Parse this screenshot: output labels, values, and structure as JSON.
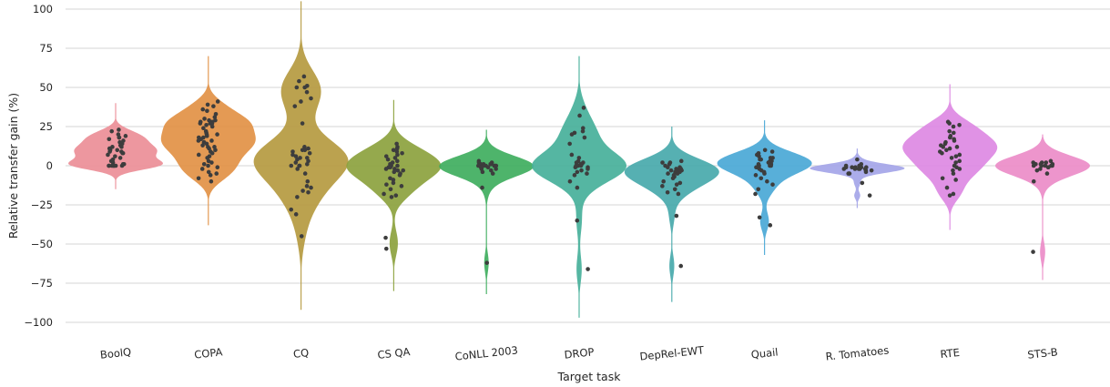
{
  "chart_data": {
    "type": "violin",
    "title": "",
    "xlabel": "Target task",
    "ylabel": "Relative transfer gain (%)",
    "ylim": [
      -100,
      100
    ],
    "yticks": [
      100,
      75,
      50,
      25,
      0,
      -25,
      -50,
      -75,
      -100
    ],
    "ytick_labels": [
      "100",
      "75",
      "50",
      "25",
      "0",
      "−25",
      "−50",
      "−75",
      "−100"
    ],
    "grid": true,
    "legend": "none",
    "categories": [
      "BoolQ",
      "COPA",
      "CQ",
      "CS QA",
      "CoNLL 2003",
      "DROP",
      "DepRel-EWT",
      "Quail",
      "R. Tomatoes",
      "RTE",
      "STS-B"
    ],
    "colors": [
      "#ec8e97",
      "#e29145",
      "#b59a40",
      "#8ca23e",
      "#3fae5e",
      "#46b09a",
      "#48a9ab",
      "#4aa8d6",
      "#a4a5e8",
      "#dd89e3",
      "#eb8cc8"
    ],
    "series": [
      {
        "name": "BoolQ",
        "min": -15,
        "max": 40,
        "median": 8,
        "points": [
          23,
          22,
          20,
          19,
          18,
          18,
          17,
          16,
          15,
          14,
          13,
          12,
          12,
          11,
          10,
          10,
          9,
          9,
          8,
          8,
          7,
          6,
          5,
          4,
          3,
          2,
          1,
          1,
          0,
          0,
          0,
          0,
          0,
          0,
          0,
          0
        ]
      },
      {
        "name": "COPA",
        "min": -38,
        "max": 70,
        "median": 15,
        "points": [
          41,
          39,
          38,
          36,
          35,
          33,
          31,
          30,
          29,
          29,
          28,
          28,
          27,
          27,
          27,
          26,
          25,
          24,
          22,
          21,
          20,
          20,
          19,
          18,
          18,
          17,
          16,
          16,
          15,
          15,
          14,
          13,
          12,
          12,
          11,
          10,
          9,
          8,
          7,
          6,
          5,
          3,
          2,
          1,
          0,
          -1,
          -2,
          -4,
          -5,
          -6,
          -8,
          -10
        ]
      },
      {
        "name": "CQ",
        "min": -92,
        "max": 105,
        "median": 5,
        "points": [
          57,
          54,
          51,
          50,
          50,
          47,
          43,
          41,
          38,
          27,
          12,
          11,
          10,
          10,
          9,
          8,
          7,
          6,
          5,
          5,
          4,
          3,
          2,
          1,
          0,
          0,
          0,
          -2,
          -5,
          -10,
          -13,
          -14,
          -16,
          -17,
          -20,
          -28,
          -31,
          -45
        ]
      },
      {
        "name": "CS QA",
        "min": -80,
        "max": 42,
        "median": 1,
        "points": [
          14,
          12,
          11,
          10,
          9,
          8,
          7,
          6,
          5,
          4,
          3,
          2,
          1,
          0,
          0,
          0,
          -1,
          -1,
          -2,
          -2,
          -3,
          -3,
          -4,
          -5,
          -6,
          -8,
          -9,
          -11,
          -12,
          -13,
          -15,
          -18,
          -19,
          -20,
          -46,
          -53
        ]
      },
      {
        "name": "CoNLL 2003",
        "min": -82,
        "max": 23,
        "median": 0,
        "points": [
          3,
          2,
          2,
          1,
          1,
          1,
          1,
          0,
          0,
          0,
          0,
          0,
          0,
          0,
          -1,
          -1,
          -1,
          -2,
          -2,
          -3,
          -4,
          -5,
          -14,
          -62
        ]
      },
      {
        "name": "DROP",
        "min": -97,
        "max": 70,
        "median": 0,
        "points": [
          37,
          32,
          24,
          22,
          21,
          20,
          18,
          14,
          7,
          5,
          3,
          2,
          2,
          1,
          1,
          0,
          0,
          0,
          0,
          -1,
          -1,
          -2,
          -3,
          -4,
          -5,
          -6,
          -10,
          -14,
          -35,
          -66
        ]
      },
      {
        "name": "DepRel-EWT",
        "min": -87,
        "max": 25,
        "median": -3,
        "points": [
          3,
          2,
          2,
          1,
          0,
          -1,
          -1,
          -2,
          -2,
          -3,
          -3,
          -3,
          -4,
          -4,
          -5,
          -5,
          -6,
          -7,
          -8,
          -10,
          -11,
          -12,
          -13,
          -15,
          -17,
          -18,
          -32,
          -64
        ]
      },
      {
        "name": "Quail",
        "min": -57,
        "max": 29,
        "median": 0,
        "points": [
          10,
          9,
          8,
          7,
          6,
          5,
          5,
          4,
          4,
          3,
          3,
          2,
          2,
          1,
          1,
          0,
          0,
          0,
          -1,
          -1,
          -2,
          -3,
          -4,
          -5,
          -6,
          -8,
          -10,
          -12,
          -15,
          -18,
          -33,
          -38
        ]
      },
      {
        "name": "R. Tomatoes",
        "min": -27,
        "max": 11,
        "median": -1,
        "points": [
          4,
          1,
          0,
          0,
          -1,
          -1,
          -1,
          -1,
          -1,
          -1,
          -2,
          -2,
          -2,
          -2,
          -2,
          -3,
          -3,
          -4,
          -5,
          -5,
          -11,
          -19
        ]
      },
      {
        "name": "RTE",
        "min": -41,
        "max": 52,
        "median": 9,
        "points": [
          28,
          27,
          26,
          25,
          22,
          21,
          19,
          18,
          17,
          16,
          15,
          14,
          13,
          12,
          12,
          11,
          10,
          9,
          8,
          7,
          6,
          5,
          3,
          2,
          0,
          -1,
          -2,
          -3,
          -5,
          -8,
          -9,
          -14,
          -18,
          -19
        ]
      },
      {
        "name": "STS-B",
        "min": -73,
        "max": 20,
        "median": 0,
        "points": [
          3,
          2,
          2,
          2,
          1,
          1,
          1,
          1,
          0,
          0,
          0,
          0,
          0,
          0,
          -1,
          -1,
          -2,
          -3,
          -5,
          -10,
          -55
        ]
      }
    ]
  }
}
